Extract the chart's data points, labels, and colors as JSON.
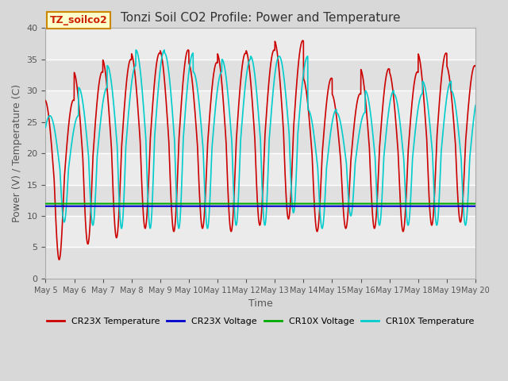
{
  "title": "Tonzi Soil CO2 Profile: Power and Temperature",
  "xlabel": "Time",
  "ylabel": "Power (V) / Temperature (C)",
  "ylim": [
    0,
    40
  ],
  "bg_color": "#d8d8d8",
  "plot_bg": "#e8e8e8",
  "cr23x_voltage_value": 11.55,
  "cr10x_voltage_value": 11.95,
  "legend_label": "TZ_soilco2",
  "x_tick_labels": [
    "May 5",
    "May 6",
    "May 7",
    "May 8",
    "May 9",
    "May 10",
    "May 11",
    "May 12",
    "May 13",
    "May 14",
    "May 15",
    "May 16",
    "May 17",
    "May 18",
    "May 19",
    "May 20"
  ],
  "series": {
    "cr23x_temp": {
      "color": "#cc0000",
      "label": "CR23X Temperature",
      "linewidth": 1.2
    },
    "cr23x_volt": {
      "color": "#0000cc",
      "label": "CR23X Voltage",
      "linewidth": 1.5
    },
    "cr10x_volt": {
      "color": "#00aa00",
      "label": "CR10X Voltage",
      "linewidth": 1.5
    },
    "cr10x_temp": {
      "color": "#00cccc",
      "label": "CR10X Temperature",
      "linewidth": 1.2
    }
  },
  "cr23x_peaks": [
    28.5,
    3.0,
    33.0,
    5.5,
    35.0,
    6.5,
    36.0,
    8.0,
    36.5,
    7.5,
    34.5,
    8.0,
    36.0,
    7.5,
    36.5,
    8.5,
    38.0,
    9.5,
    32.0,
    7.5,
    29.5,
    8.0,
    33.5,
    8.0,
    33.0,
    7.5,
    36.0,
    8.5,
    35.5,
    6.5,
    31.0,
    9.0,
    34.0,
    9.0
  ],
  "cr10x_peaks": [
    9.0,
    26.0,
    8.5,
    30.5,
    8.0,
    34.0,
    8.0,
    36.5,
    8.0,
    36.0,
    8.0,
    33.0,
    8.5,
    35.0,
    8.5,
    35.5,
    10.5,
    35.5,
    8.0,
    27.0,
    10.0,
    26.5,
    8.5,
    30.0,
    8.5,
    29.5,
    8.5,
    31.5,
    8.5,
    29.5,
    8.5,
    30.0,
    8.5,
    30.0
  ]
}
